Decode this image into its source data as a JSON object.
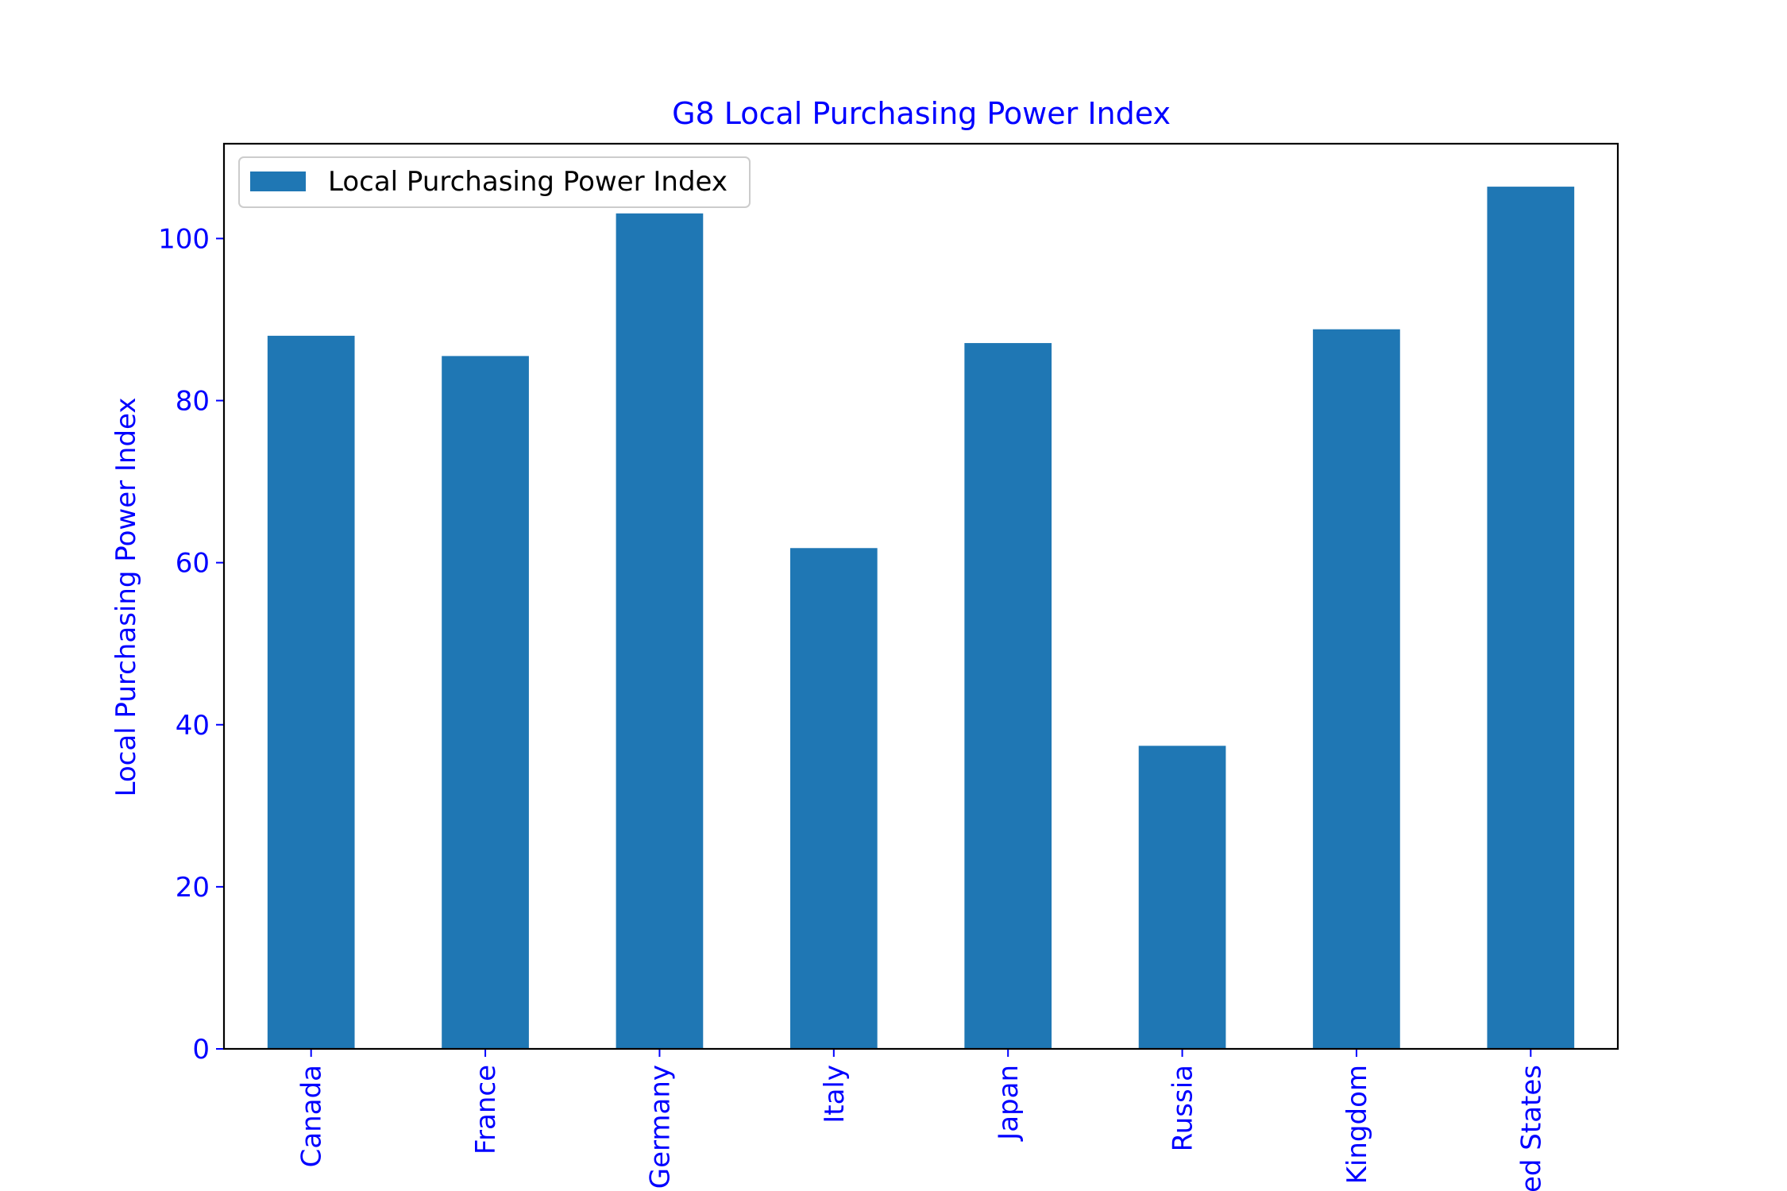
{
  "chart_data": {
    "type": "bar",
    "title": "G8 Local Purchasing Power Index",
    "xlabel": "",
    "ylabel": "Local Purchasing Power Index",
    "categories": [
      "Canada",
      "France",
      "Germany",
      "Italy",
      "Japan",
      "Russia",
      "Kingdom",
      "ed States"
    ],
    "series": [
      {
        "name": "Local Purchasing Power Index",
        "values": [
          88.0,
          85.5,
          103.1,
          61.8,
          87.1,
          37.4,
          88.8,
          106.4
        ]
      }
    ],
    "ylim": [
      0,
      111.7
    ],
    "yticks": [
      "0",
      "20",
      "40",
      "60",
      "80",
      "100"
    ],
    "ytick_values": [
      0,
      20,
      40,
      60,
      80,
      100
    ],
    "grid": false,
    "legend_position": "top-left",
    "colors": {
      "bar": "#1f77b4",
      "text": "#0000ff",
      "axis": "#000000"
    }
  }
}
